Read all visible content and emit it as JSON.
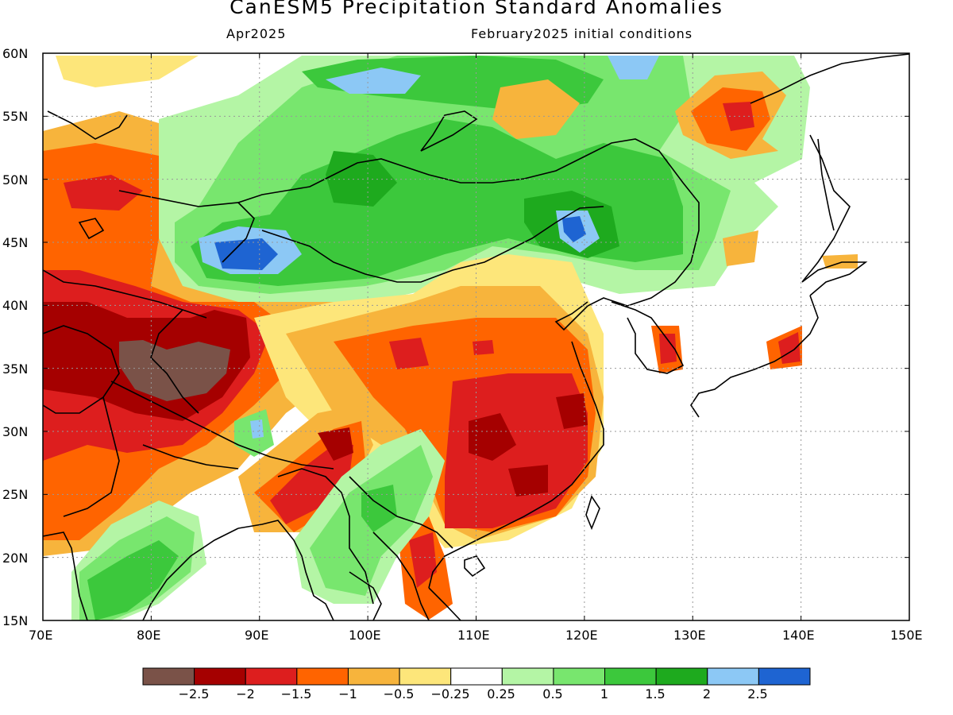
{
  "title": "CanESM5 Precipitation Standard Anomalies",
  "subtitle_left": "Apr2025",
  "subtitle_right": "February2025 initial conditions",
  "map": {
    "lon_range": [
      70,
      150
    ],
    "lat_range": [
      15,
      60
    ],
    "lon_ticks": [
      "70E",
      "80E",
      "90E",
      "100E",
      "110E",
      "120E",
      "130E",
      "140E",
      "150E"
    ],
    "lat_ticks": [
      "60N",
      "55N",
      "50N",
      "45N",
      "40N",
      "35N",
      "30N",
      "25N",
      "20N",
      "15N"
    ],
    "grid": "dotted"
  },
  "colorbar": {
    "colors": [
      "#7a5248",
      "#a50000",
      "#dd1e1e",
      "#ff6400",
      "#f7b43c",
      "#fde67a",
      "#ffffff",
      "#b4f5a5",
      "#78e66e",
      "#3cc83c",
      "#1eaa1e",
      "#8cc8f5",
      "#1e64d2"
    ],
    "labels": [
      "−2.5",
      "−2",
      "−1.5",
      "−1",
      "−0.5",
      "−0.25",
      "0.25",
      "0.5",
      "1",
      "1.5",
      "2",
      "2.5"
    ]
  },
  "colors": {
    "dry_extreme": "#7a5248",
    "dry_strong": "#a50000",
    "dry": "#dd1e1e",
    "dry_moderate": "#ff6400",
    "dry_weak": "#f7b43c",
    "dry_slight": "#fde67a",
    "neutral": "#ffffff",
    "wet_slight": "#b4f5a5",
    "wet_weak": "#78e66e",
    "wet_moderate": "#3cc83c",
    "wet": "#1eaa1e",
    "wet_strong": "#8cc8f5",
    "wet_extreme": "#1e64d2"
  }
}
